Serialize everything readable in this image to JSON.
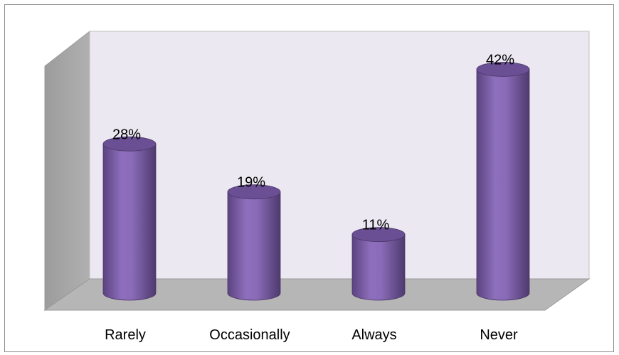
{
  "chart_data": {
    "type": "bar",
    "categories": [
      "Rarely",
      "Occasionally",
      "Always",
      "Never"
    ],
    "values": [
      28,
      19,
      11,
      42
    ],
    "value_labels": [
      "28%",
      "19%",
      "11%",
      "42%"
    ],
    "ylim": [
      0,
      45
    ],
    "grid": false,
    "legend": "none",
    "style": "3d-cylinder",
    "colors": {
      "bar": "#7b5ea7",
      "bar_top": "#6a4f94",
      "back_wall": "#ebe8f1",
      "side_wall": "#a7a7a7",
      "floor": "#b6b6b6"
    }
  }
}
